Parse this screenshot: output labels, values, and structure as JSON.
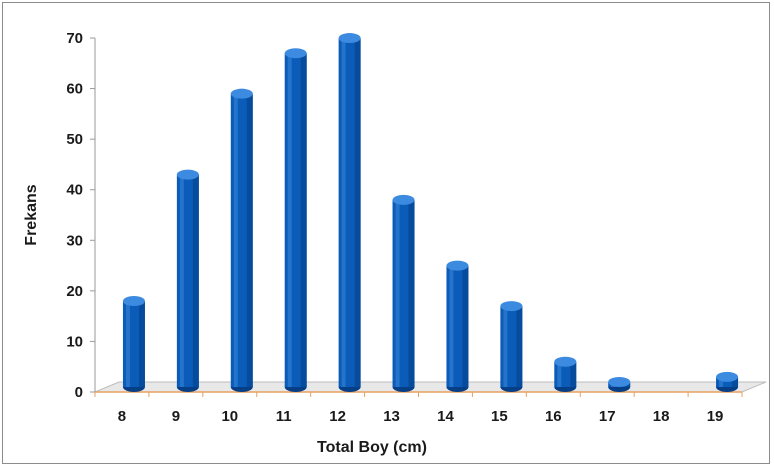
{
  "chart_data": {
    "type": "bar",
    "title": "",
    "xlabel": "Total Boy (cm)",
    "ylabel": "Frekans",
    "categories": [
      "8",
      "9",
      "10",
      "11",
      "12",
      "13",
      "14",
      "15",
      "16",
      "17",
      "18",
      "19"
    ],
    "values": [
      17,
      42,
      58,
      66,
      69,
      37,
      24,
      16,
      5,
      1,
      0,
      2
    ],
    "ylim": [
      0,
      70
    ],
    "yticks": [
      0,
      10,
      20,
      30,
      40,
      50,
      60,
      70
    ],
    "grid": false,
    "legend": "none",
    "colors": {
      "bar": "#0a5cb8",
      "bar_dark": "#063f85",
      "bar_light": "#3d8be0",
      "floor": "#e8e8e8",
      "floor_edge": "#e8a060"
    }
  }
}
